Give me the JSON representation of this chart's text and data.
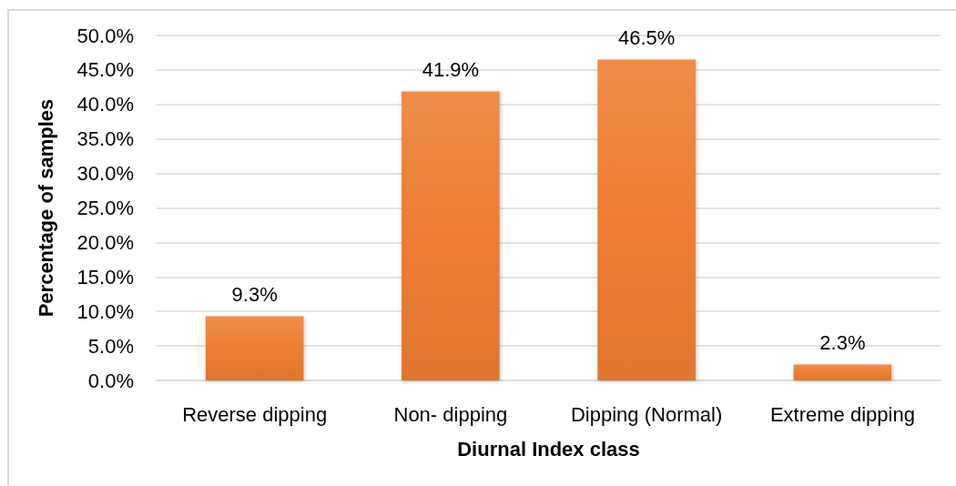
{
  "chart_data": {
    "type": "bar",
    "xlabel": "Diurnal Index class",
    "ylabel": "Percentage of samples",
    "categories": [
      "Reverse dipping",
      "Non- dipping",
      "Dipping (Normal)",
      "Extreme dipping"
    ],
    "values": [
      9.3,
      41.9,
      46.5,
      2.3
    ],
    "color": "#ed7d31",
    "value_labels": [
      "9.3%",
      "41.9%",
      "46.5%",
      "2.3%"
    ],
    "ylim": [
      0,
      50
    ],
    "yticks": [
      {
        "value": 0,
        "label": "0.0%"
      },
      {
        "value": 5,
        "label": "5.0%"
      },
      {
        "value": 10,
        "label": "10.0%"
      },
      {
        "value": 15,
        "label": "15.0%"
      },
      {
        "value": 20,
        "label": "20.0%"
      },
      {
        "value": 25,
        "label": "25.0%"
      },
      {
        "value": 30,
        "label": "30.0%"
      },
      {
        "value": 35,
        "label": "35.0%"
      },
      {
        "value": 40,
        "label": "40.0%"
      },
      {
        "value": 45,
        "label": "45.0%"
      },
      {
        "value": 50,
        "label": "50.0%"
      }
    ],
    "grid": "y"
  }
}
